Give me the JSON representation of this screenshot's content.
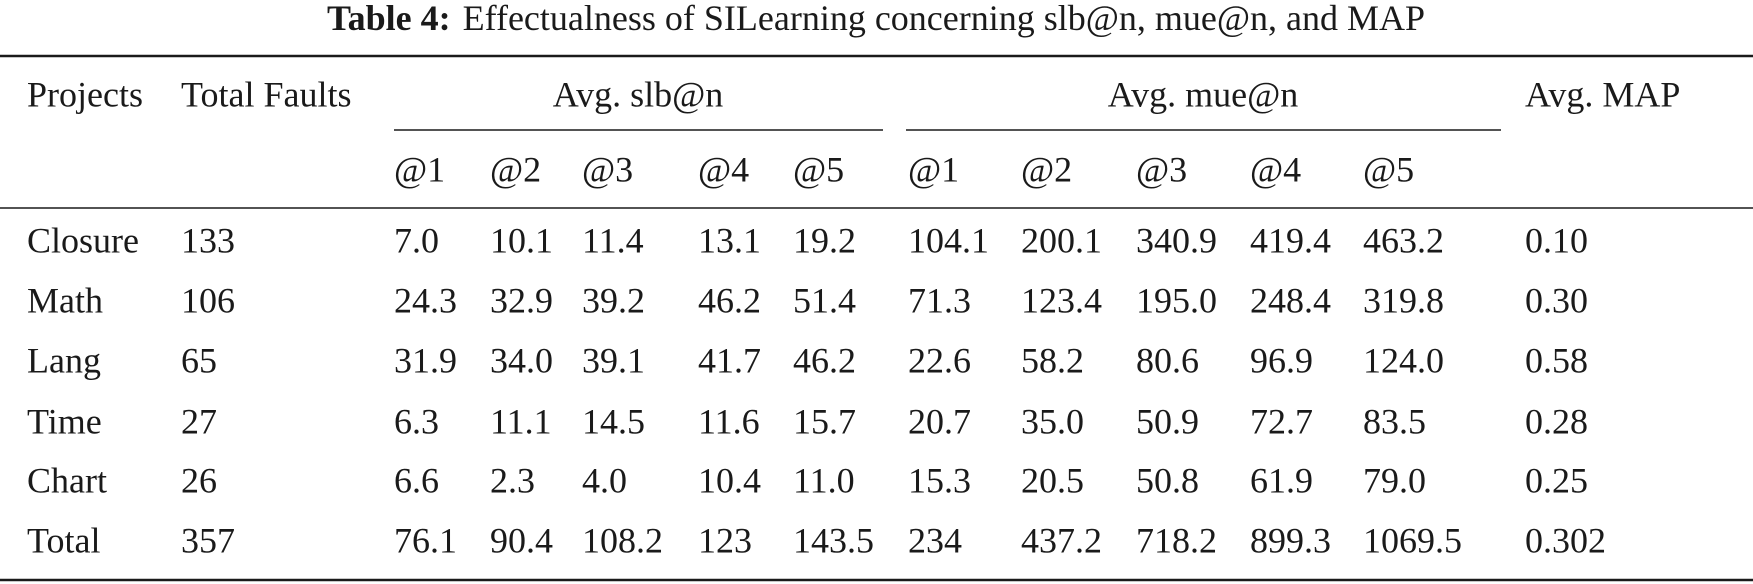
{
  "caption": {
    "label": "Table 4:",
    "text": "Effectualness of SILearning concerning slb@n, mue@n, and MAP"
  },
  "table": {
    "header": {
      "columns": [
        "Projects",
        "Total Faults"
      ],
      "groups": [
        "Avg. slb@n",
        "Avg. mue@n"
      ],
      "last": "Avg. MAP",
      "subheaders": [
        "@1",
        "@2",
        "@3",
        "@4",
        "@5",
        "@1",
        "@2",
        "@3",
        "@4",
        "@5"
      ]
    },
    "rows": [
      [
        "Closure",
        "133",
        "7.0",
        "10.1",
        "11.4",
        "13.1",
        "19.2",
        "104.1",
        "200.1",
        "340.9",
        "419.4",
        "463.2",
        "0.10"
      ],
      [
        "Math",
        "106",
        "24.3",
        "32.9",
        "39.2",
        "46.2",
        "51.4",
        "71.3",
        "123.4",
        "195.0",
        "248.4",
        "319.8",
        "0.30"
      ],
      [
        "Lang",
        "65",
        "31.9",
        "34.0",
        "39.1",
        "41.7",
        "46.2",
        "22.6",
        "58.2",
        "80.6",
        "96.9",
        "124.0",
        "0.58"
      ],
      [
        "Time",
        "27",
        "6.3",
        "11.1",
        "14.5",
        "11.6",
        "15.7",
        "20.7",
        "35.0",
        "50.9",
        "72.7",
        "83.5",
        "0.28"
      ],
      [
        "Chart",
        "26",
        "6.6",
        "2.3",
        "4.0",
        "10.4",
        "11.0",
        "15.3",
        "20.5",
        "50.8",
        "61.9",
        "79.0",
        "0.25"
      ],
      [
        "Total",
        "357",
        "76.1",
        "90.4",
        "108.2",
        "123",
        "143.5",
        "234",
        "437.2",
        "718.2",
        "899.3",
        "1069.5",
        "0.302"
      ]
    ]
  }
}
